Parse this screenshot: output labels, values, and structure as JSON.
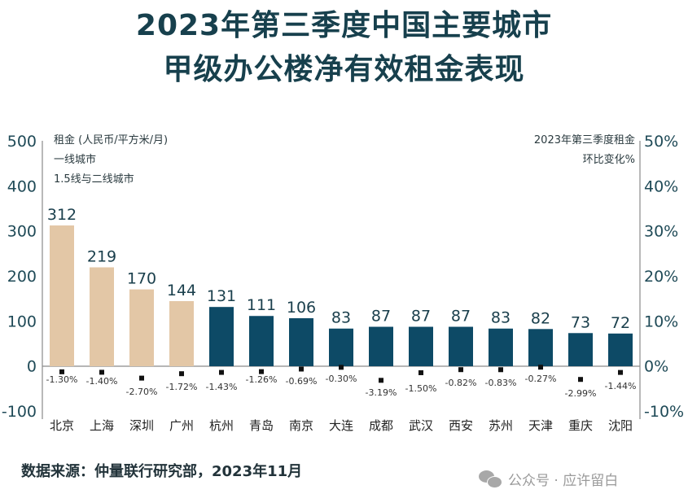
{
  "title": {
    "line1": "2023年第三季度中国主要城市",
    "line2": "甲级办公楼净有效租金表现"
  },
  "source": "数据来源：仲量联行研究部，2023年11月",
  "watermark": "公众号 · 应许留白",
  "colors": {
    "tier1": "#e3c7a6",
    "tier2": "#0d4a66",
    "marker": "#111111",
    "axis": "#8a8a8a"
  },
  "chart_data": {
    "type": "bar",
    "title": "2023年第三季度中国主要城市甲级办公楼净有效租金表现",
    "categories": [
      "北京",
      "上海",
      "深圳",
      "广州",
      "杭州",
      "青岛",
      "南京",
      "大连",
      "成都",
      "武汉",
      "西安",
      "苏州",
      "天津",
      "重庆",
      "沈阳"
    ],
    "series": [
      {
        "name": "租金 (人民币/平方米/月)",
        "axis": "left",
        "kind": "bar",
        "values": [
          312,
          219,
          170,
          144,
          131,
          111,
          106,
          83,
          87,
          87,
          87,
          83,
          82,
          73,
          72
        ],
        "labels": [
          "312",
          "219",
          "170",
          "144",
          "131",
          "111",
          "106",
          "83",
          "87",
          "87",
          "87",
          "83",
          "82",
          "73",
          "72"
        ],
        "groups": [
          "一线城市",
          "一线城市",
          "一线城市",
          "一线城市",
          "1.5线与二线城市",
          "1.5线与二线城市",
          "1.5线与二线城市",
          "1.5线与二线城市",
          "1.5线与二线城市",
          "1.5线与二线城市",
          "1.5线与二线城市",
          "1.5线与二线城市",
          "1.5线与二线城市",
          "1.5线与二线城市",
          "1.5线与二线城市"
        ]
      },
      {
        "name": "2023年第三季度租金环比变化%",
        "axis": "right",
        "kind": "marker",
        "values": [
          -1.3,
          -1.4,
          -2.7,
          -1.72,
          -1.43,
          -1.26,
          -0.69,
          -0.3,
          -3.19,
          -1.5,
          -0.82,
          -0.83,
          -0.27,
          -2.99,
          -1.44
        ],
        "labels": [
          "-1.30%",
          "-1.40%",
          "-2.70%",
          "-1.72%",
          "-1.43%",
          "-1.26%",
          "-0.69%",
          "-0.30%",
          "-3.19%",
          "-1.50%",
          "-0.82%",
          "-0.83%",
          "-0.27%",
          "-2.99%",
          "-1.44%"
        ]
      }
    ],
    "legend": {
      "left_title": "租金 (人民币/平方米/月)",
      "tier1": "一线城市",
      "tier2": "1.5线与二线城市",
      "right_title_line1": "2023年第三季度租金",
      "right_title_line2": "环比变化%",
      "placement": "top"
    },
    "left_axis": {
      "ylim": [
        -100,
        500
      ],
      "ticks": [
        "500",
        "400",
        "300",
        "200",
        "100",
        "0",
        "-100"
      ],
      "tick_values": [
        500,
        400,
        300,
        200,
        100,
        0,
        -100
      ]
    },
    "right_axis": {
      "ylim": [
        -10,
        50
      ],
      "ticks": [
        "50%",
        "40%",
        "30%",
        "20%",
        "10%",
        "0%",
        "-10%"
      ],
      "tick_values": [
        50,
        40,
        30,
        20,
        10,
        0,
        -10
      ]
    },
    "grid": false
  }
}
